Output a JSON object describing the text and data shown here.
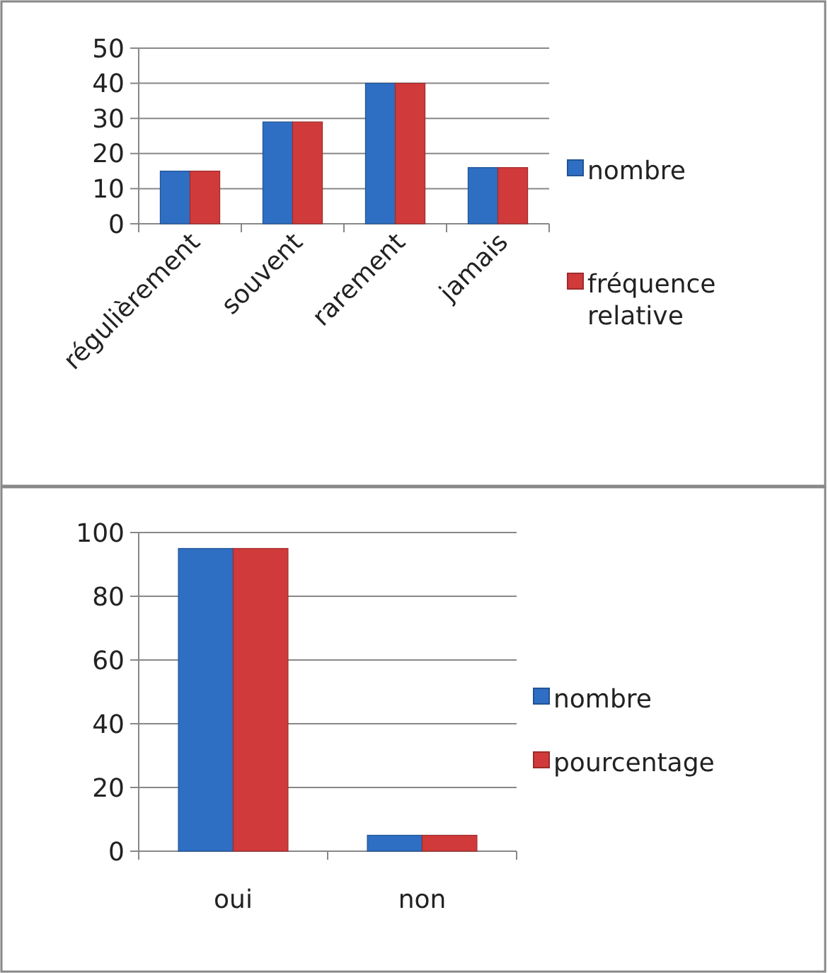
{
  "chart_data": [
    {
      "type": "bar",
      "categories": [
        "régulièrement",
        "souvent",
        "rarement",
        "jamais"
      ],
      "series": [
        {
          "name": "nombre",
          "color": "#2e6fc4",
          "values": [
            15,
            29,
            40,
            16
          ]
        },
        {
          "name": "fréquence relative",
          "color": "#d13a3a",
          "values": [
            15,
            29,
            40,
            16
          ]
        }
      ],
      "ylim": [
        0,
        50
      ],
      "yticks": [
        0,
        10,
        20,
        30,
        40,
        50
      ],
      "grid": "y",
      "legend": "right"
    },
    {
      "type": "bar",
      "categories": [
        "oui",
        "non"
      ],
      "series": [
        {
          "name": "nombre",
          "color": "#2e6fc4",
          "values": [
            95,
            5
          ]
        },
        {
          "name": "pourcentage",
          "color": "#d13a3a",
          "values": [
            95,
            5
          ]
        }
      ],
      "ylim": [
        0,
        100
      ],
      "yticks": [
        0,
        20,
        40,
        60,
        80,
        100
      ],
      "grid": "y",
      "legend": "right"
    }
  ]
}
